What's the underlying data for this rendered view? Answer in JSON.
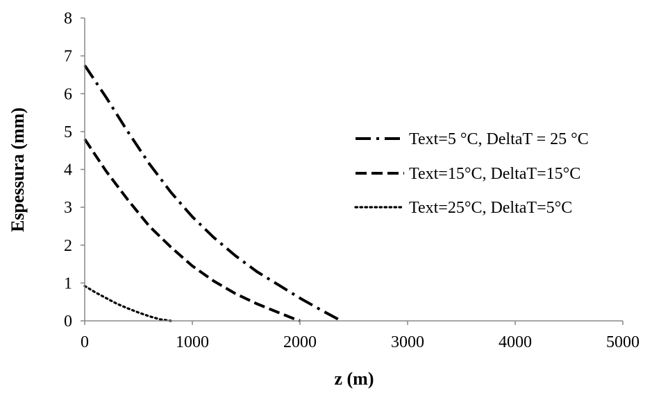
{
  "chart_data": {
    "type": "line",
    "title": "",
    "xlabel": "z (m)",
    "ylabel": "Espessura (mm)",
    "xlim": [
      0,
      5000
    ],
    "ylim": [
      0,
      8
    ],
    "xticks": [
      "0",
      "1000",
      "2000",
      "3000",
      "4000",
      "5000"
    ],
    "yticks": [
      "0",
      "1",
      "2",
      "3",
      "4",
      "5",
      "6",
      "7",
      "8"
    ],
    "grid": false,
    "legend_position": "right",
    "series": [
      {
        "name": "Text=5 °C, DeltaT = 25 °C",
        "style": "dash-dot",
        "color": "#000000",
        "x": [
          0,
          200,
          400,
          600,
          800,
          1000,
          1200,
          1400,
          1600,
          1800,
          2000,
          2200,
          2350,
          2380
        ],
        "y": [
          6.75,
          5.9,
          5.0,
          4.15,
          3.4,
          2.75,
          2.2,
          1.72,
          1.3,
          0.95,
          0.6,
          0.28,
          0.05,
          0.0
        ]
      },
      {
        "name": "Text=15°C, DeltaT=15°C",
        "style": "dash",
        "color": "#000000",
        "x": [
          0,
          200,
          400,
          600,
          800,
          1000,
          1200,
          1400,
          1600,
          1800,
          1950,
          2000
        ],
        "y": [
          4.8,
          3.95,
          3.2,
          2.5,
          1.95,
          1.45,
          1.05,
          0.72,
          0.45,
          0.22,
          0.05,
          0.0
        ]
      },
      {
        "name": "Text=25°C, DeltaT=5°C",
        "style": "dot",
        "color": "#000000",
        "x": [
          0,
          100,
          200,
          300,
          400,
          500,
          600,
          700,
          800
        ],
        "y": [
          0.92,
          0.75,
          0.6,
          0.45,
          0.33,
          0.22,
          0.12,
          0.04,
          0.0
        ]
      }
    ]
  }
}
